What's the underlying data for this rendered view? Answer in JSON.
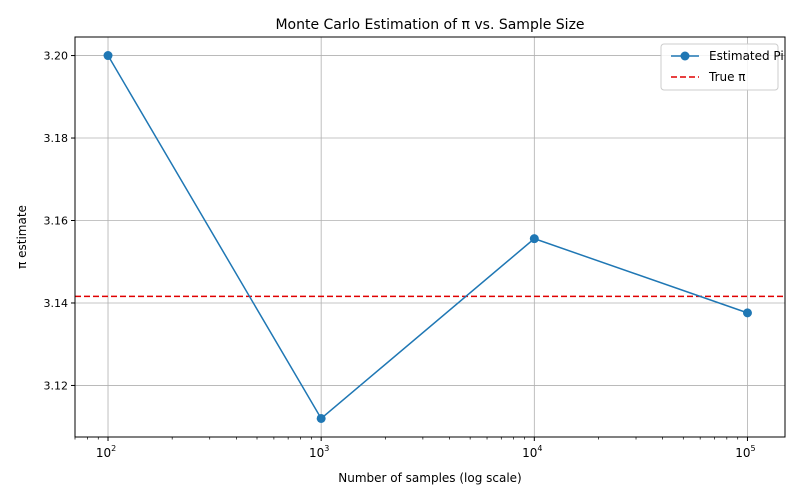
{
  "chart_data": {
    "type": "line",
    "title": "Monte Carlo Estimation of π vs. Sample Size",
    "xlabel": "Number of samples (log scale)",
    "ylabel": "π estimate",
    "xscale": "log",
    "xlim": [
      70,
      150000
    ],
    "ylim": [
      3.1075,
      3.2045
    ],
    "grid": true,
    "legend_position": "top-right",
    "x_ticks": [
      {
        "value": 100,
        "base": "10",
        "exp": "2"
      },
      {
        "value": 1000,
        "base": "10",
        "exp": "3"
      },
      {
        "value": 10000,
        "base": "10",
        "exp": "4"
      },
      {
        "value": 100000,
        "base": "10",
        "exp": "5"
      }
    ],
    "y_ticks": [
      {
        "value": 3.12,
        "label": "3.12"
      },
      {
        "value": 3.14,
        "label": "3.14"
      },
      {
        "value": 3.16,
        "label": "3.16"
      },
      {
        "value": 3.18,
        "label": "3.18"
      },
      {
        "value": 3.2,
        "label": "3.20"
      }
    ],
    "series": [
      {
        "name": "Estimated Pi",
        "color": "#1f77b4",
        "x": [
          100,
          1000,
          10000,
          100000
        ],
        "y": [
          3.2,
          3.112,
          3.1556,
          3.1376
        ]
      }
    ],
    "reference_lines": [
      {
        "name": "True π",
        "y": 3.14159,
        "color": "#e00000",
        "style": "dashed"
      }
    ]
  }
}
